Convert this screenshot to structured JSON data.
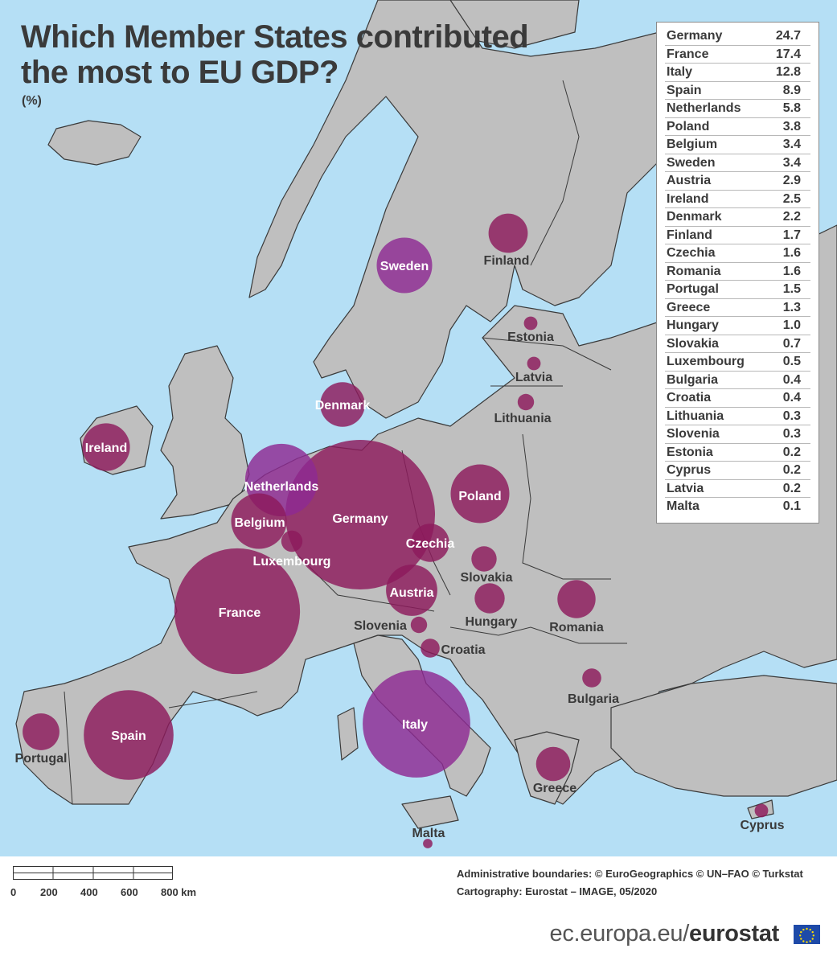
{
  "title": "Which Member States contributed the most to EU GDP?",
  "unit": "(%)",
  "colors": {
    "sea": "#b5dff5",
    "land": "#bfbfbf",
    "border": "#3a3a3a",
    "bubble": "#8c1a5b",
    "bubble_alt": "#8e2a93"
  },
  "table": [
    {
      "country": "Germany",
      "value": "24.7"
    },
    {
      "country": "France",
      "value": "17.4"
    },
    {
      "country": "Italy",
      "value": "12.8"
    },
    {
      "country": "Spain",
      "value": "8.9"
    },
    {
      "country": "Netherlands",
      "value": "5.8"
    },
    {
      "country": "Poland",
      "value": "3.8"
    },
    {
      "country": "Belgium",
      "value": "3.4"
    },
    {
      "country": "Sweden",
      "value": "3.4"
    },
    {
      "country": "Austria",
      "value": "2.9"
    },
    {
      "country": "Ireland",
      "value": "2.5"
    },
    {
      "country": "Denmark",
      "value": "2.2"
    },
    {
      "country": "Finland",
      "value": "1.7"
    },
    {
      "country": "Czechia",
      "value": "1.6"
    },
    {
      "country": "Romania",
      "value": "1.6"
    },
    {
      "country": "Portugal",
      "value": "1.5"
    },
    {
      "country": "Greece",
      "value": "1.3"
    },
    {
      "country": "Hungary",
      "value": "1.0"
    },
    {
      "country": "Slovakia",
      "value": "0.7"
    },
    {
      "country": "Luxembourg",
      "value": "0.5"
    },
    {
      "country": "Bulgaria",
      "value": "0.4"
    },
    {
      "country": "Croatia",
      "value": "0.4"
    },
    {
      "country": "Lithuania",
      "value": "0.3"
    },
    {
      "country": "Slovenia",
      "value": "0.3"
    },
    {
      "country": "Estonia",
      "value": "0.2"
    },
    {
      "country": "Cyprus",
      "value": "0.2"
    },
    {
      "country": "Latvia",
      "value": "0.2"
    },
    {
      "country": "Malta",
      "value": "0.1"
    }
  ],
  "map_labels": {
    "Germany": "Germany",
    "France": "France",
    "Italy": "Italy",
    "Spain": "Spain",
    "Netherlands": "Netherlands",
    "Poland": "Poland",
    "Belgium": "Belgium",
    "Sweden": "Sweden",
    "Austria": "Austria",
    "Ireland": "Ireland",
    "Denmark": "Denmark",
    "Finland": "Finland",
    "Czechia": "Czechia",
    "Romania": "Romania",
    "Portugal": "Portugal",
    "Greece": "Greece",
    "Hungary": "Hungary",
    "Slovakia": "Slovakia",
    "Luxembourg": "Luxembourg",
    "Bulgaria": "Bulgaria",
    "Croatia": "Croatia",
    "Lithuania": "Lithuania",
    "Slovenia": "Slovenia",
    "Estonia": "Estonia",
    "Cyprus": "Cyprus",
    "Latvia": "Latvia",
    "Malta": "Malta"
  },
  "scale_bar": {
    "labels": [
      "0",
      "200",
      "400",
      "600",
      "800 km"
    ]
  },
  "credits": {
    "line1": "Administrative boundaries: © EuroGeographics © UN–FAO © Turkstat",
    "line2": "Cartography: Eurostat – IMAGE, 05/2020"
  },
  "brand": {
    "prefix": "ec.europa.eu/",
    "name": "eurostat"
  }
}
